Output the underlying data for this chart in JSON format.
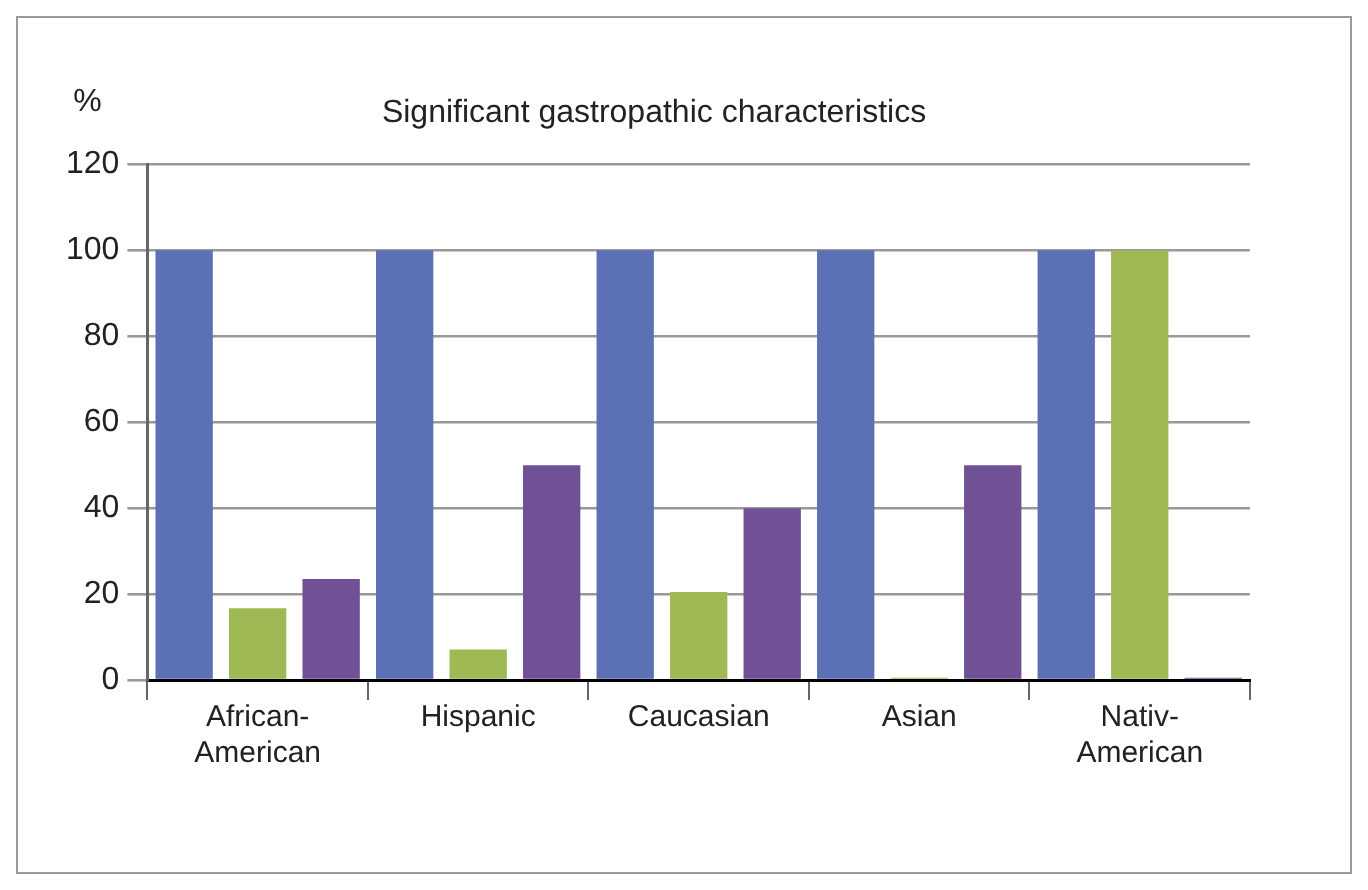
{
  "chart_data": {
    "type": "bar",
    "title": "Significant gastropathic characteristics",
    "ylabel": "%",
    "categories": [
      "African-American",
      "Hispanic",
      "Caucasian",
      "Asian",
      "Nativ-American"
    ],
    "series": [
      {
        "color": "#5b70b5",
        "values": [
          100,
          100,
          100,
          100,
          100
        ]
      },
      {
        "color": "#9fba55",
        "values": [
          16.7,
          7.1,
          20.5,
          0.5,
          100
        ]
      },
      {
        "color": "#705196",
        "values": [
          23.5,
          50,
          40,
          50,
          0.5
        ]
      }
    ],
    "ylim": [
      0,
      120
    ],
    "yticks": [
      0,
      20,
      40,
      60,
      80,
      100,
      120
    ],
    "grid": "y",
    "legend": false
  }
}
